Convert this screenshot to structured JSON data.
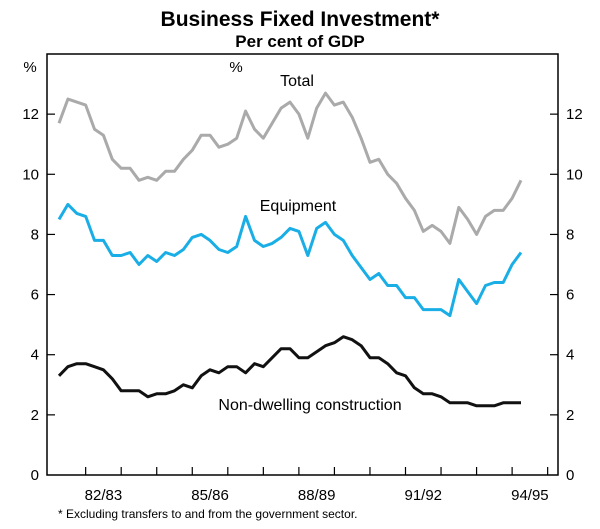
{
  "chart_data": {
    "type": "line",
    "title": "Business Fixed Investment*",
    "subtitle": "Per cent of GDP",
    "ylabel_left": "%",
    "ylabel_right": "%",
    "ylim": [
      0,
      14
    ],
    "y_ticks": [
      "0",
      "2",
      "4",
      "6",
      "8",
      "10",
      "12"
    ],
    "x_ticks": [
      "82/83",
      "85/86",
      "88/89",
      "91/92",
      "94/95"
    ],
    "footnote": "* Excluding transfers to and from the government sector.",
    "series": [
      {
        "name": "Total",
        "label": "Total",
        "color": "#aaaaaa",
        "values": [
          11.7,
          12.5,
          12.4,
          12.3,
          11.5,
          11.3,
          10.5,
          10.2,
          10.2,
          9.8,
          9.9,
          9.8,
          10.1,
          10.1,
          10.5,
          10.8,
          11.3,
          11.3,
          10.9,
          11.0,
          11.2,
          12.1,
          11.5,
          11.2,
          11.7,
          12.2,
          12.4,
          12.0,
          11.2,
          12.2,
          12.7,
          12.3,
          12.4,
          11.9,
          11.2,
          10.4,
          10.5,
          10.0,
          9.7,
          9.2,
          8.8,
          8.1,
          8.3,
          8.1,
          7.7,
          8.9,
          8.5,
          8.0,
          8.6,
          8.8,
          8.8,
          9.2,
          9.8
        ]
      },
      {
        "name": "Equipment",
        "label": "Equipment",
        "color": "#1aaee6",
        "values": [
          8.5,
          9.0,
          8.7,
          8.6,
          7.8,
          7.8,
          7.3,
          7.3,
          7.4,
          7.0,
          7.3,
          7.1,
          7.4,
          7.3,
          7.5,
          7.9,
          8.0,
          7.8,
          7.5,
          7.4,
          7.6,
          8.6,
          7.8,
          7.6,
          7.7,
          7.9,
          8.2,
          8.1,
          7.3,
          8.2,
          8.4,
          8.0,
          7.8,
          7.3,
          6.9,
          6.5,
          6.7,
          6.3,
          6.3,
          5.9,
          5.9,
          5.5,
          5.5,
          5.5,
          5.3,
          6.5,
          6.1,
          5.7,
          6.3,
          6.4,
          6.4,
          7.0,
          7.4
        ]
      },
      {
        "name": "Non-dwelling construction",
        "label": "Non-dwelling construction",
        "color": "#111111",
        "values": [
          3.3,
          3.6,
          3.7,
          3.7,
          3.6,
          3.5,
          3.2,
          2.8,
          2.8,
          2.8,
          2.6,
          2.7,
          2.7,
          2.8,
          3.0,
          2.9,
          3.3,
          3.5,
          3.4,
          3.6,
          3.6,
          3.4,
          3.7,
          3.6,
          3.9,
          4.2,
          4.2,
          3.9,
          3.9,
          4.1,
          4.3,
          4.4,
          4.6,
          4.5,
          4.3,
          3.9,
          3.9,
          3.7,
          3.4,
          3.3,
          2.9,
          2.7,
          2.7,
          2.6,
          2.4,
          2.4,
          2.4,
          2.3,
          2.3,
          2.3,
          2.4,
          2.4,
          2.4
        ]
      }
    ]
  }
}
